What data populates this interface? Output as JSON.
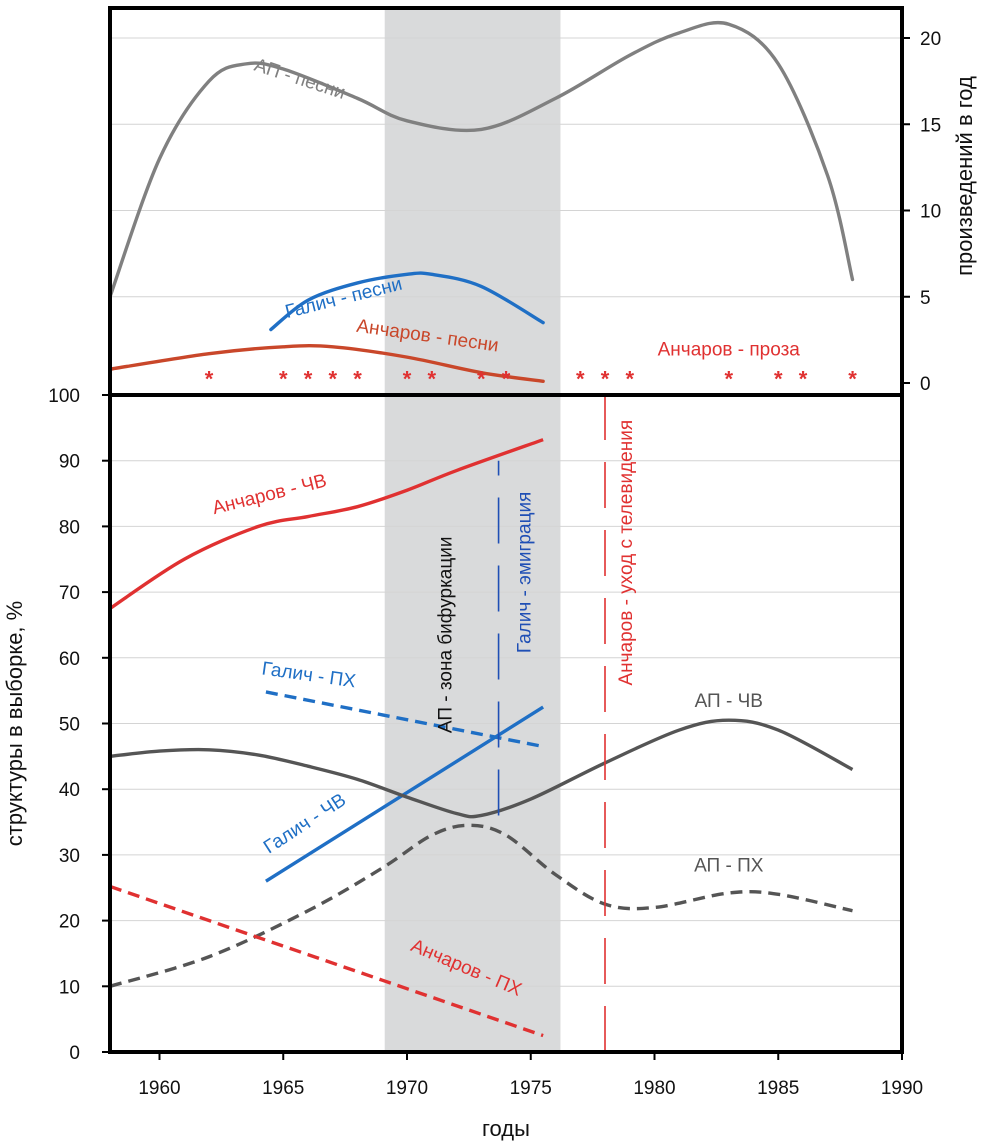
{
  "chart_data": [
    {
      "type": "line",
      "panel": "top",
      "ylabel": "произведений в год",
      "ylim": [
        0,
        22
      ],
      "yticks": [
        0,
        5,
        10,
        15,
        20
      ],
      "xlim": [
        1958,
        1990
      ],
      "grid": true,
      "series": [
        {
          "name": "АП - песни",
          "color": "#808080",
          "dash": false,
          "x": [
            1958,
            1960,
            1962,
            1963.5,
            1965,
            1968,
            1970,
            1973,
            1976,
            1979,
            1981,
            1983,
            1985,
            1987,
            1988
          ],
          "y": [
            5,
            13,
            17.5,
            18.5,
            18.2,
            16.5,
            15.2,
            14.7,
            16.5,
            19,
            20.3,
            20.8,
            18.5,
            12,
            6
          ]
        },
        {
          "name": "Галич - песни",
          "color": "#1f6fc5",
          "dash": false,
          "x": [
            1964.5,
            1966,
            1968,
            1970,
            1971,
            1973,
            1975.5
          ],
          "y": [
            3.1,
            4.8,
            5.8,
            6.3,
            6.3,
            5.6,
            3.5
          ]
        },
        {
          "name": "Анчаров - песни",
          "color": "#c9472a",
          "dash": false,
          "x": [
            1958,
            1962,
            1965,
            1967,
            1970,
            1973,
            1975.5
          ],
          "y": [
            0.8,
            1.7,
            2.1,
            2.1,
            1.5,
            0.6,
            0.1
          ]
        }
      ],
      "markers": {
        "name": "Анчаров - проза",
        "color": "#e03131",
        "x": [
          1962,
          1965,
          1966,
          1967,
          1968,
          1970,
          1971,
          1973,
          1974,
          1977,
          1978,
          1979,
          1983,
          1985,
          1986,
          1988
        ],
        "y": [
          0.5,
          0.5,
          0.5,
          0.5,
          0.5,
          0.5,
          0.5,
          0.5,
          0.5,
          0.5,
          0.5,
          0.5,
          0.5,
          0.5,
          0.5,
          0.5
        ]
      }
    },
    {
      "type": "line",
      "panel": "bottom",
      "xlabel": "годы",
      "ylabel": "структуры в выборке, %",
      "ylim": [
        0,
        100
      ],
      "yticks": [
        0,
        10,
        20,
        30,
        40,
        50,
        60,
        70,
        80,
        90,
        100
      ],
      "xlim": [
        1958,
        1990
      ],
      "xticks": [
        1960,
        1965,
        1970,
        1975,
        1980,
        1985,
        1990
      ],
      "grid": true,
      "series": [
        {
          "name": "Анчаров - ЧВ",
          "color": "#e03131",
          "dash": false,
          "x": [
            1958,
            1961,
            1964,
            1966,
            1968,
            1970,
            1972,
            1975.5
          ],
          "y": [
            67.5,
            75,
            80,
            81.5,
            83,
            85.5,
            88.5,
            93.2
          ]
        },
        {
          "name": "Галич - ПХ",
          "color": "#1f6fc5",
          "dash": true,
          "x": [
            1964.3,
            1975.5
          ],
          "y": [
            54.8,
            46.5
          ]
        },
        {
          "name": "Галич - ЧВ",
          "color": "#1f6fc5",
          "dash": false,
          "x": [
            1964.3,
            1975.5
          ],
          "y": [
            26,
            52.5
          ]
        },
        {
          "name": "АП - ЧВ",
          "color": "#555555",
          "dash": false,
          "x": [
            1958,
            1960,
            1962,
            1964,
            1966,
            1968,
            1970,
            1972,
            1973,
            1975,
            1978,
            1981,
            1983,
            1985,
            1988
          ],
          "y": [
            45,
            45.8,
            46,
            45.2,
            43.5,
            41.5,
            38.8,
            36.3,
            36,
            38.5,
            44,
            49,
            50.5,
            49,
            43
          ]
        },
        {
          "name": "АП - ПХ",
          "color": "#555555",
          "dash": true,
          "x": [
            1958,
            1962,
            1966,
            1969,
            1971,
            1972.5,
            1974,
            1976,
            1978,
            1980,
            1983,
            1985,
            1988
          ],
          "y": [
            10,
            14.5,
            21.5,
            28,
            33,
            34.5,
            33,
            27,
            22.5,
            22,
            24.2,
            24,
            21.5
          ]
        },
        {
          "name": "Анчаров - ПХ",
          "color": "#e03131",
          "dash": true,
          "x": [
            1958,
            1975.5
          ],
          "y": [
            25.2,
            2.5
          ]
        }
      ],
      "vlines": [
        {
          "label": "Галич - эмиграция",
          "x": 1973.7,
          "y_from": 36,
          "y_to": 90,
          "color": "#1f4fb5"
        },
        {
          "label": "Анчаров - уход с телевидения",
          "x": 1978,
          "y_from": 0,
          "y_to": 100,
          "color": "#e03131"
        }
      ]
    }
  ],
  "bifurcation_zone": {
    "label": "АП - зона бифуркации",
    "x_from": 1969.1,
    "x_to": 1976.2,
    "color": "#d9dadb"
  }
}
